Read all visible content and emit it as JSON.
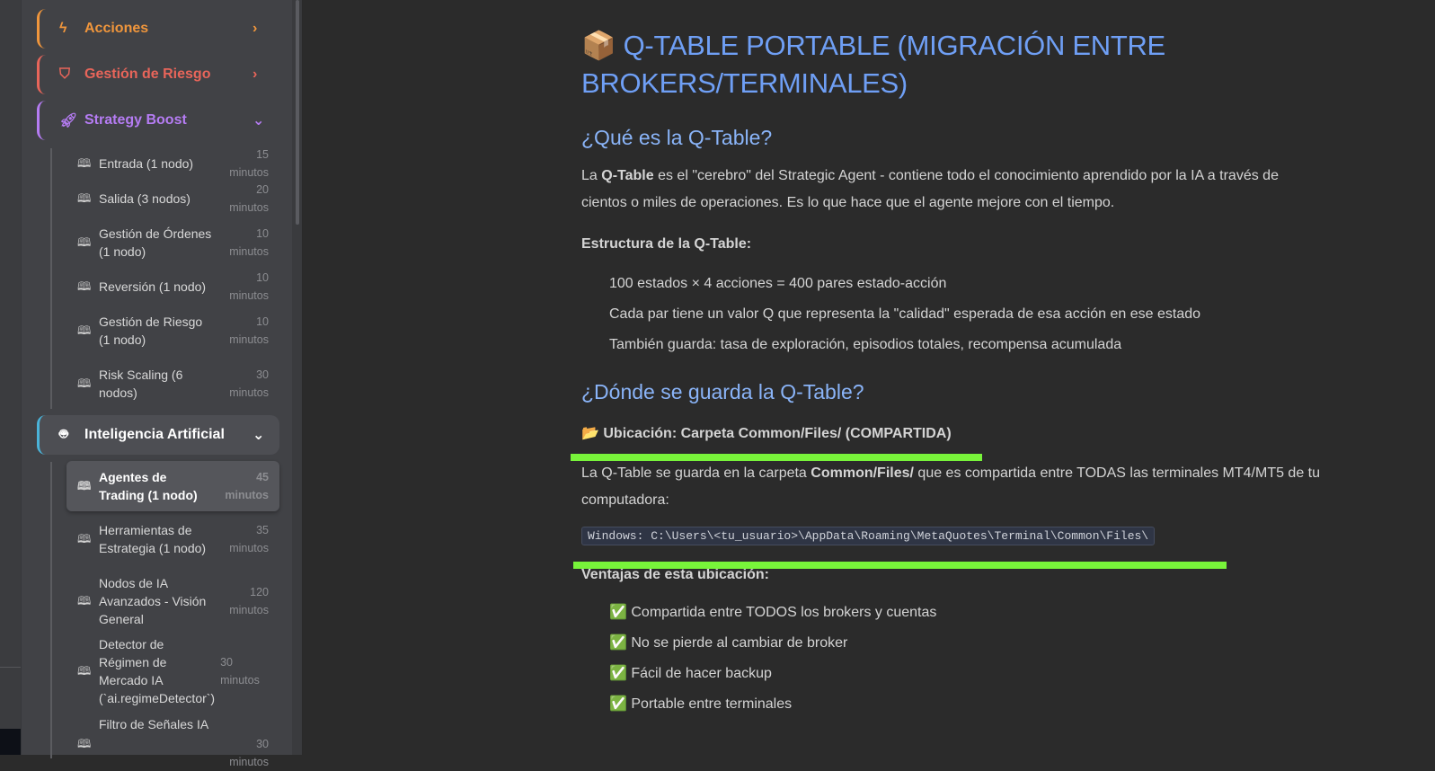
{
  "sidebar": {
    "sections": [
      {
        "label": "Acciones",
        "icon": "lightning-icon",
        "color": "#f0963c",
        "state": "collapsed"
      },
      {
        "label": "Gestión de Riesgo",
        "icon": "shield-icon",
        "color": "#e8655a",
        "state": "collapsed"
      },
      {
        "label": "Strategy Boost",
        "icon": "rocket-icon",
        "color": "#b57cf3",
        "state": "expanded"
      },
      {
        "label": "Inteligencia Artificial",
        "icon": "robot-icon",
        "color": "#4ab3d9",
        "state": "expanded"
      }
    ],
    "strategy_items": [
      {
        "title": "Entrada (1 nodo)",
        "time": "15 minutos"
      },
      {
        "title": "Salida (3 nodos)",
        "time": "20 minutos"
      },
      {
        "title": "Gestión de Órdenes (1 nodo)",
        "time": "10 minutos"
      },
      {
        "title": "Reversión (1 nodo)",
        "time": "10 minutos"
      },
      {
        "title": "Gestión de Riesgo (1 nodo)",
        "time": "10 minutos"
      },
      {
        "title": "Risk Scaling (6 nodos)",
        "time": "30 minutos"
      }
    ],
    "ai_items": [
      {
        "title": "Agentes de Trading (1 nodo)",
        "time": "45 minutos",
        "active": true
      },
      {
        "title": "Herramientas de Estrategia (1 nodo)",
        "time": "35 minutos"
      },
      {
        "title": "Nodos de IA Avanzados - Visión General",
        "time": "120 minutos"
      },
      {
        "title": "Detector de Régimen de Mercado IA (`ai.regimeDetector`)",
        "time": "30 minutos"
      },
      {
        "title": "Filtro de Señales IA",
        "time": "30 minutos"
      }
    ]
  },
  "main": {
    "title": "📦 Q-TABLE PORTABLE (MIGRACIÓN ENTRE BROKERS/TERMINALES)",
    "h_what": "¿Qué es la Q-Table?",
    "p1_a": "La ",
    "p1_b": "Q-Table",
    "p1_c": " es el \"cerebro\" del Strategic Agent - contiene todo el conocimiento aprendido por la IA a través de cientos o miles de operaciones. Es lo que hace que el agente mejore con el tiempo.",
    "struct_label": "Estructura de la Q-Table:",
    "struct_items": [
      "100 estados × 4 acciones = 400 pares estado-acción",
      "Cada par tiene un valor Q que representa la \"calidad\" esperada de esa acción en ese estado",
      "También guarda: tasa de exploración, episodios totales, recompensa acumulada"
    ],
    "h_where": "¿Dónde se guarda la Q-Table?",
    "location_label": "📂 Ubicación: Carpeta Common/Files/ (COMPARTIDA)",
    "p2_a": "La Q-Table se guarda en la carpeta ",
    "p2_b": "Common/Files/",
    "p2_c": " que es compartida entre TODAS las terminales MT4/MT5 de tu computadora:",
    "code": "Windows: C:\\Users\\<tu_usuario>\\AppData\\Roaming\\MetaQuotes\\Terminal\\Common\\Files\\",
    "adv_label": "Ventajas de esta ubicación:",
    "adv_items": [
      "✅ Compartida entre TODOS los brokers y cuentas",
      "✅ No se pierde al cambiar de broker",
      "✅ Fácil de hacer backup",
      "✅ Portable entre terminales"
    ],
    "highlight_color": "#78f43a"
  }
}
